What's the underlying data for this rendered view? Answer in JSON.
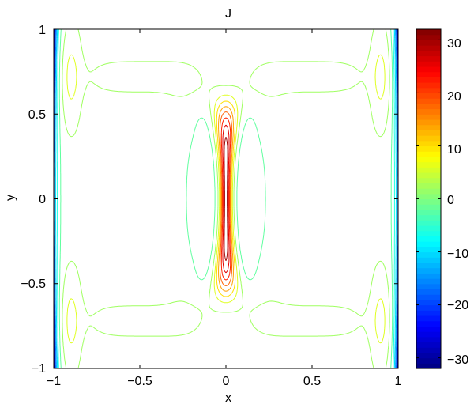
{
  "chart_data": {
    "type": "contour",
    "title": "J",
    "xlabel": "x",
    "ylabel": "y",
    "xlim": [
      -1,
      1
    ],
    "ylim": [
      -1,
      1
    ],
    "x_ticks": [
      -1,
      -0.5,
      0,
      0.5,
      1
    ],
    "x_tick_labels": [
      "−1",
      "−0.5",
      "0",
      "0.5",
      "1"
    ],
    "y_ticks": [
      -1,
      -0.5,
      0,
      0.5,
      1
    ],
    "y_tick_labels": [
      "−1",
      "−0.5",
      "0",
      "0.5",
      "1"
    ],
    "colormap": "jet",
    "clim": [
      -32,
      32
    ],
    "colorbar_ticks": [
      30,
      20,
      10,
      0,
      -10,
      -20,
      -30
    ],
    "colorbar_tick_labels": [
      "30",
      "20",
      "10",
      "0",
      "−10",
      "−20",
      "−30"
    ],
    "colorbar_position": "right",
    "box": true,
    "grid": false,
    "contour_levels": [
      -30,
      -26,
      -22,
      -18,
      -14,
      -10,
      -6,
      -2,
      2,
      6,
      10,
      14,
      18,
      22,
      26,
      30
    ],
    "field_features": {
      "central_current_sheet": {
        "x": 0.0,
        "y_range": [
          -0.6,
          0.6
        ],
        "peak_value": 32
      },
      "flanking_negative_lobes": {
        "x": [
          -0.14,
          0.14
        ],
        "y_range": [
          -0.6,
          0.6
        ],
        "min_value": -4
      },
      "boundary_bands": {
        "x": [
          -1.0,
          1.0
        ],
        "y_range": [
          -1.0,
          1.0
        ],
        "min_value": -32
      }
    }
  }
}
